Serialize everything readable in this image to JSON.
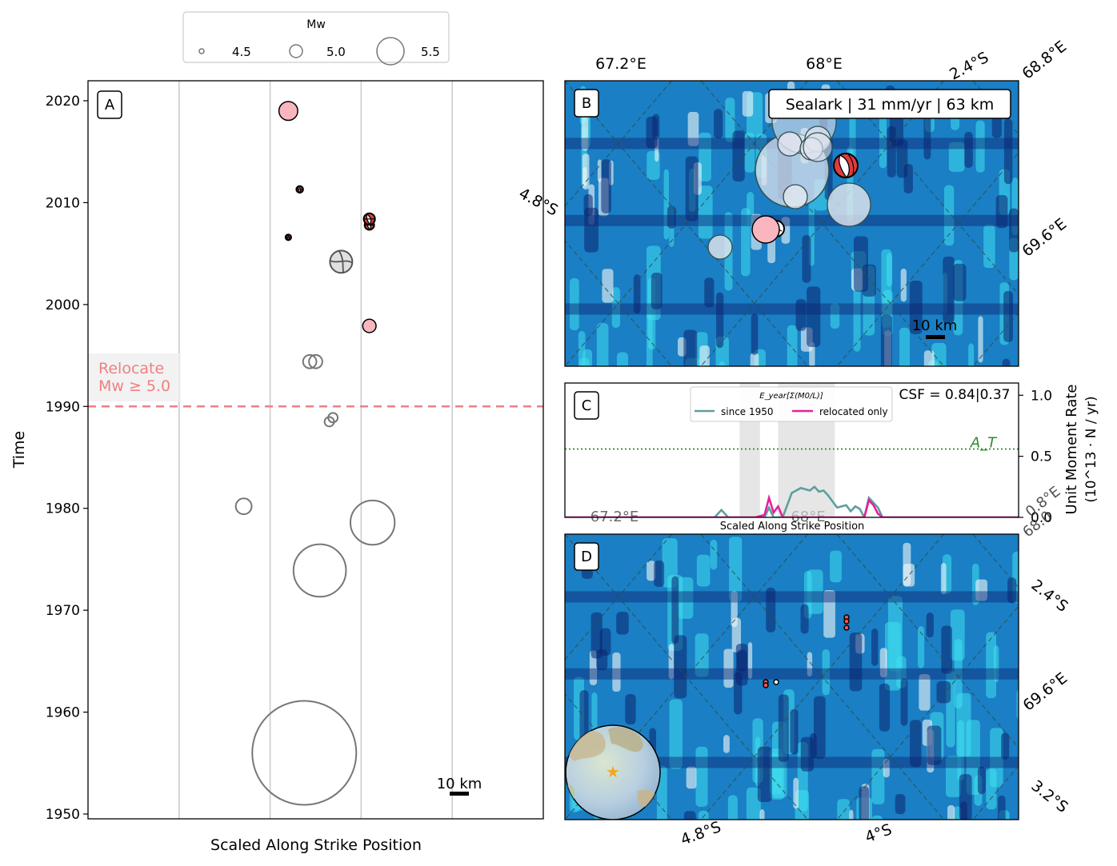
{
  "legend": {
    "title": "Mw",
    "entries": [
      {
        "label": "4.5",
        "mw": 4.5
      },
      {
        "label": "5.0",
        "mw": 5.0
      },
      {
        "label": "5.5",
        "mw": 5.5
      }
    ]
  },
  "panels": {
    "a": {
      "letter": "A",
      "ylabel": "Time",
      "xlabel": "Scaled Along Strike Position",
      "yticks": [
        "1950",
        "1960",
        "1970",
        "1980",
        "1990",
        "2000",
        "2010",
        "2020"
      ],
      "relocate_text1": "Relocate",
      "relocate_text2": "Mw ≥ 5.0",
      "scalebar": "10 km"
    },
    "b": {
      "letter": "B",
      "info": "Sealark | 31 mm/yr | 63 km",
      "top_labels": [
        "67.2°E",
        "68°E",
        "2.4°S",
        "68.8°E"
      ],
      "left_label": "4.8°S",
      "right_label": "69.6°E",
      "scalebar": "10 km"
    },
    "c": {
      "letter": "C",
      "csf": "CSF = 0.84|0.37",
      "legend_title": "E_year[Σ(M0/L)]",
      "legend_since": "since 1950",
      "legend_reloc": "relocated only",
      "a_label": "A_T",
      "yticks": [
        "0.0",
        "0.5",
        "1.0"
      ],
      "ylabel1": "Unit Moment Rate",
      "ylabel2": "(10^13 · N / yr)",
      "xlabel": "Scaled Along Strike Position",
      "overlap_labels": [
        "67.2°E",
        "68°E",
        "0.8°E",
        "68.0"
      ]
    },
    "d": {
      "letter": "D",
      "right_labels": [
        "2.4°S",
        "69.6°E",
        "3.2°S"
      ],
      "bottom_labels": [
        "4.8°S",
        "4°S"
      ]
    }
  },
  "chart_data": [
    {
      "type": "scatter",
      "panel": "A",
      "xlabel": "Scaled Along Strike Position",
      "ylabel": "Time",
      "ylim": [
        1949,
        2022
      ],
      "xlim": [
        0,
        1
      ],
      "grid_x": [
        0.2,
        0.4,
        0.6,
        0.8
      ],
      "relocate_threshold_year": 1990,
      "events": [
        {
          "x": 0.44,
          "year": 2019.0,
          "mw": 5.3,
          "kind": "relocated"
        },
        {
          "x": 0.465,
          "year": 2011.3,
          "mw": 4.7,
          "kind": "mechanism"
        },
        {
          "x": 0.44,
          "year": 2006.6,
          "mw": 4.6,
          "kind": "mechanism"
        },
        {
          "x": 0.618,
          "year": 2007.8,
          "mw": 4.9,
          "kind": "mechanism"
        },
        {
          "x": 0.618,
          "year": 2008.4,
          "mw": 5.0,
          "kind": "mechanism"
        },
        {
          "x": 0.556,
          "year": 2004.2,
          "mw": 5.4,
          "kind": "catalog-mechanism"
        },
        {
          "x": 0.618,
          "year": 1997.9,
          "mw": 5.1,
          "kind": "relocated"
        },
        {
          "x": 0.5,
          "year": 1994.4,
          "mw": 5.1,
          "kind": "catalog"
        },
        {
          "x": 0.487,
          "year": 1994.4,
          "mw": 5.1,
          "kind": "catalog"
        },
        {
          "x": 0.538,
          "year": 1988.9,
          "mw": 4.9,
          "kind": "catalog"
        },
        {
          "x": 0.53,
          "year": 1988.5,
          "mw": 4.9,
          "kind": "catalog"
        },
        {
          "x": 0.342,
          "year": 1980.2,
          "mw": 5.2,
          "kind": "catalog"
        },
        {
          "x": 0.625,
          "year": 1978.6,
          "mw": 5.8,
          "kind": "catalog"
        },
        {
          "x": 0.509,
          "year": 1973.9,
          "mw": 5.9,
          "kind": "catalog"
        },
        {
          "x": 0.475,
          "year": 1956.0,
          "mw": 6.3,
          "kind": "catalog"
        }
      ]
    },
    {
      "type": "line",
      "panel": "C",
      "xlabel": "Scaled Along Strike Position",
      "ylabel": "Unit Moment Rate (10^13 · N / yr)",
      "ylim": [
        0,
        1.1
      ],
      "threshold": {
        "label": "A_T",
        "value": 0.56
      },
      "x": [
        0.0,
        0.3,
        0.33,
        0.345,
        0.36,
        0.4,
        0.42,
        0.44,
        0.45,
        0.46,
        0.47,
        0.48,
        0.5,
        0.52,
        0.54,
        0.55,
        0.56,
        0.57,
        0.58,
        0.6,
        0.62,
        0.63,
        0.64,
        0.65,
        0.66,
        0.67,
        0.68,
        0.69,
        0.7,
        1.0
      ],
      "series": [
        {
          "name": "since 1950",
          "values": [
            0,
            0,
            0,
            0.06,
            0,
            0,
            0,
            0,
            0.08,
            0,
            0,
            0,
            0.2,
            0.24,
            0.22,
            0.25,
            0.21,
            0.22,
            0.18,
            0.08,
            0.1,
            0.05,
            0.09,
            0.07,
            0,
            0.16,
            0.12,
            0.08,
            0,
            0
          ]
        },
        {
          "name": "relocated only",
          "values": [
            0,
            0,
            0,
            0,
            0,
            0,
            0,
            0.02,
            0.16,
            0.04,
            0.09,
            0,
            0,
            0,
            0,
            0,
            0,
            0,
            0,
            0,
            0,
            0,
            0,
            0,
            0,
            0.14,
            0.1,
            0.03,
            0,
            0
          ]
        }
      ],
      "shaded_regions": [
        [
          0.385,
          0.43
        ],
        [
          0.47,
          0.595
        ]
      ],
      "annotation": "CSF = 0.84|0.37"
    }
  ]
}
